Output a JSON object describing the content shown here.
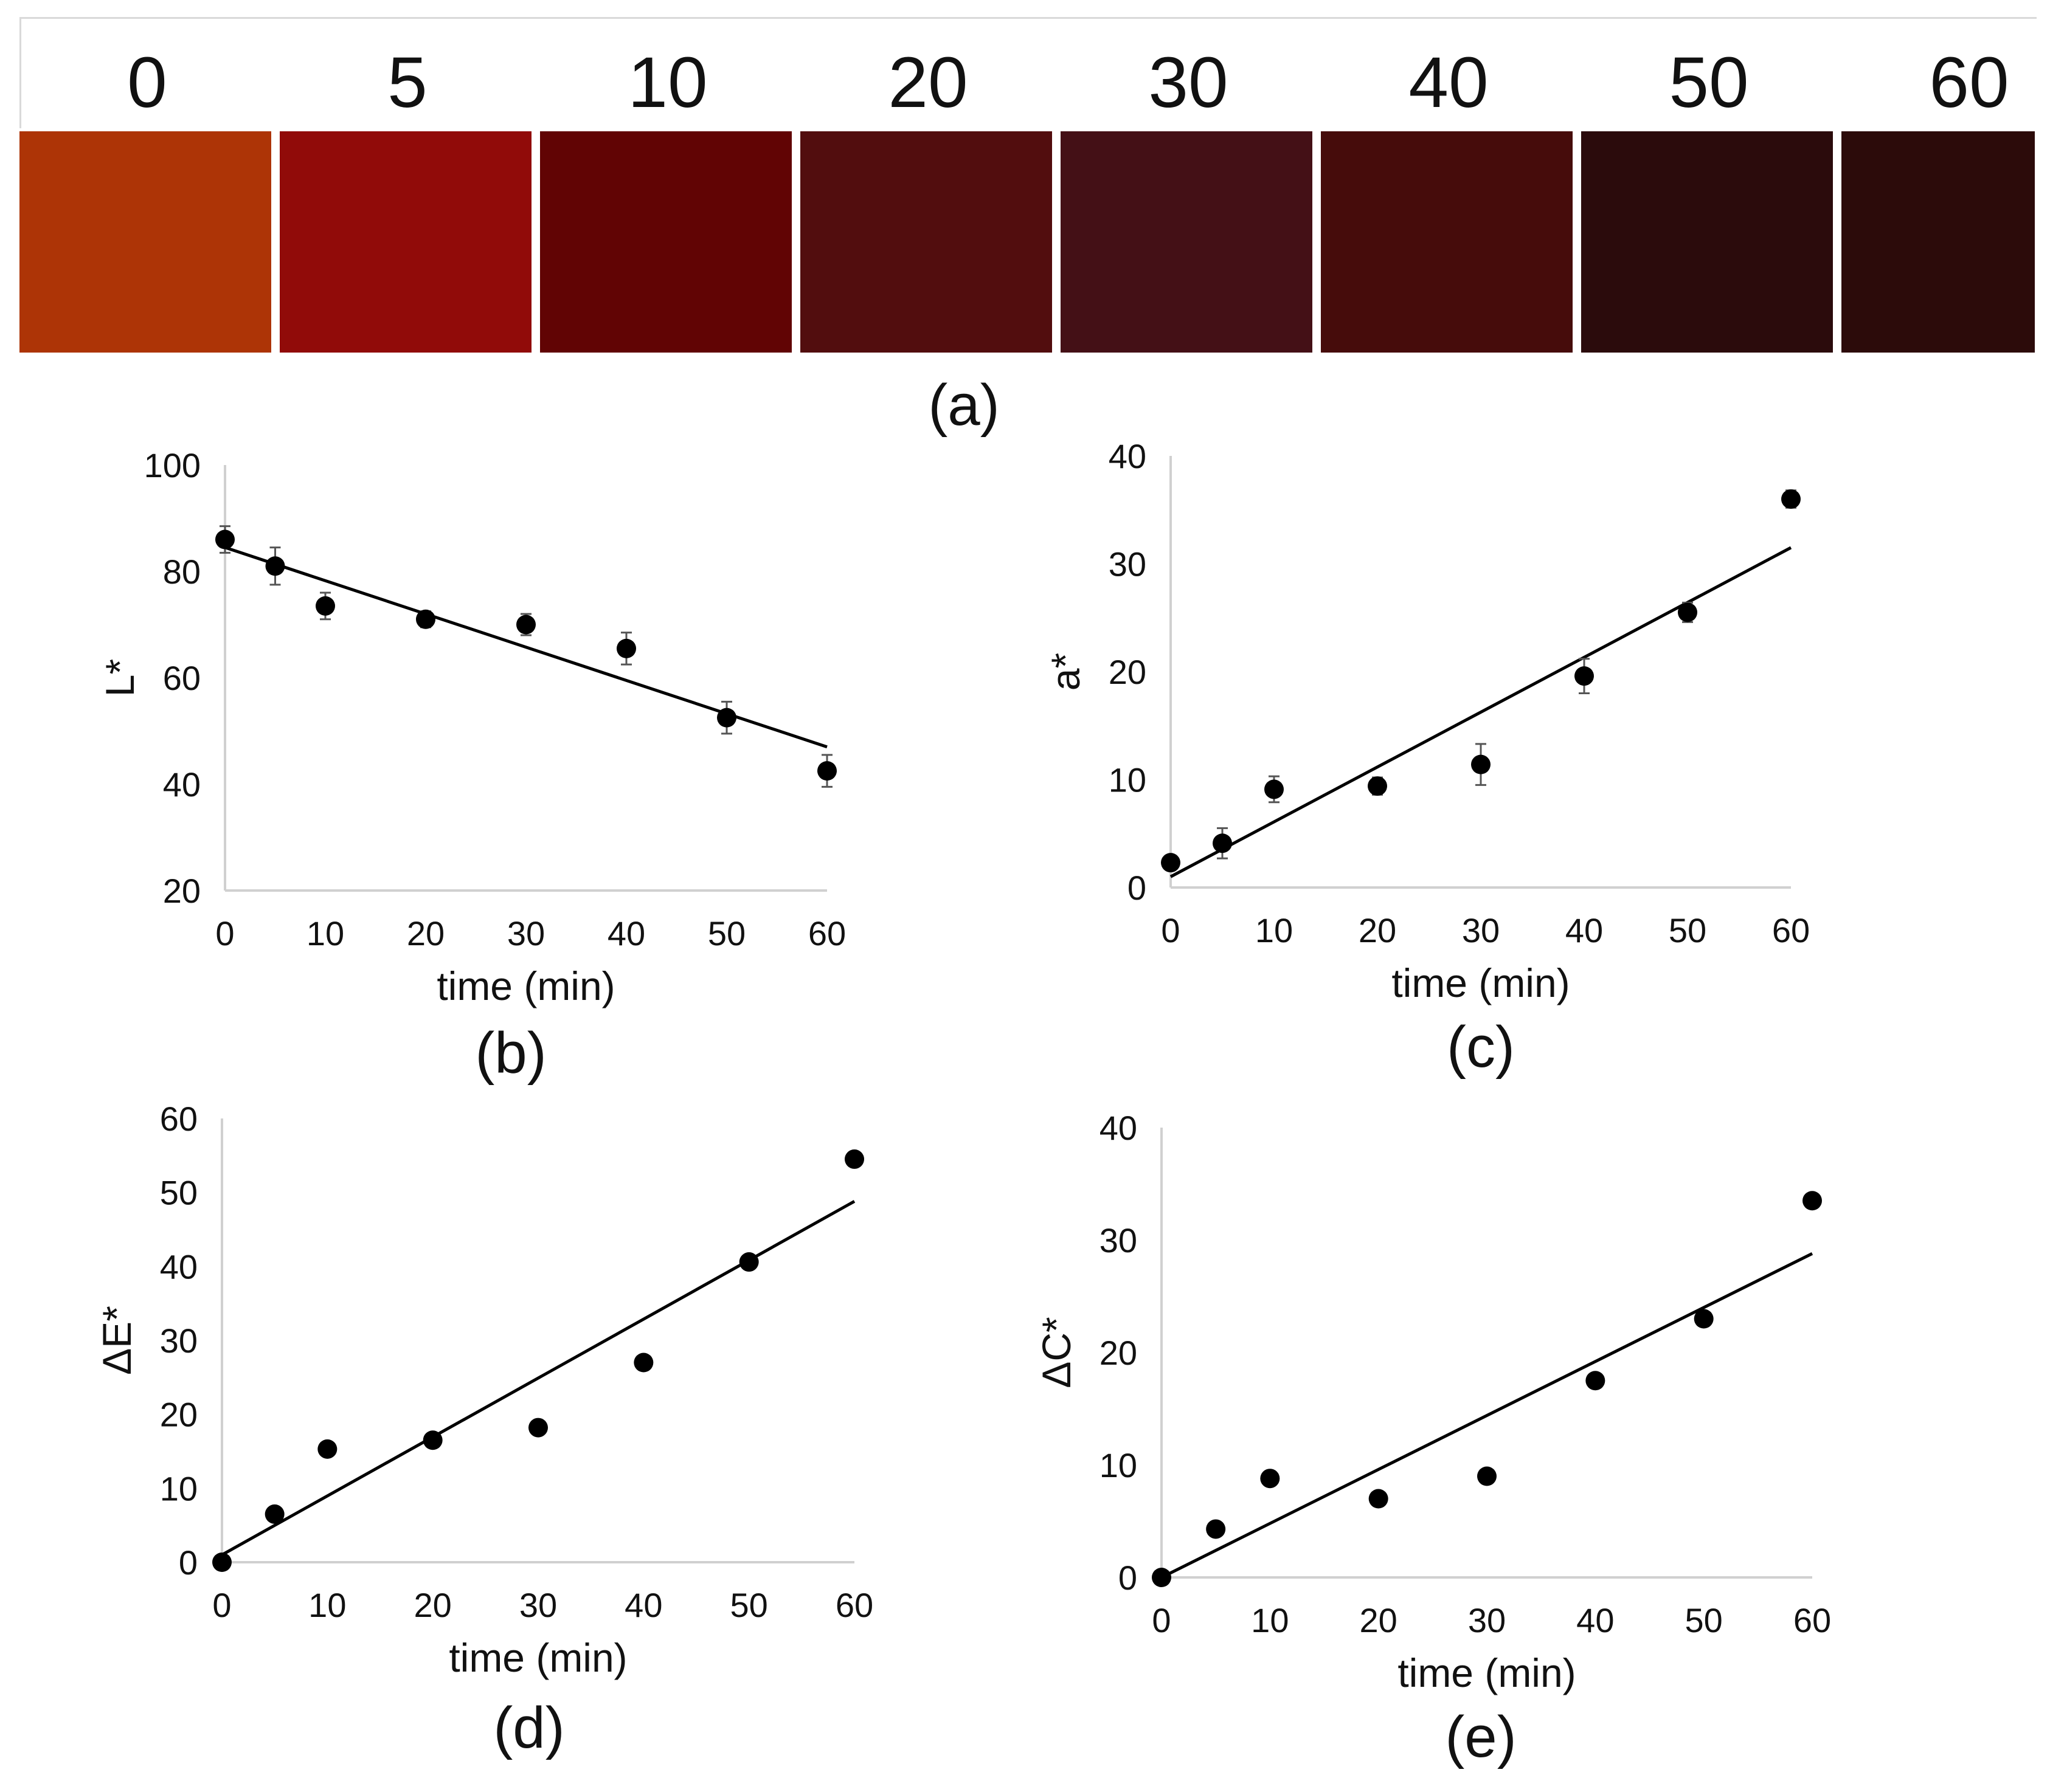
{
  "swatches": {
    "label_unit": "time (min)",
    "items": [
      {
        "label": "0",
        "color": "#ad3406"
      },
      {
        "label": "5",
        "color": "#910b09"
      },
      {
        "label": "10",
        "color": "#610404"
      },
      {
        "label": "20",
        "color": "#520d0e"
      },
      {
        "label": "30",
        "color": "#441016"
      },
      {
        "label": "40",
        "color": "#460c0b"
      },
      {
        "label": "50",
        "color": "#2b0b0c"
      },
      {
        "label": "60",
        "color": "#2c0b0a"
      }
    ],
    "caption": "(a)"
  },
  "chart_data": [
    {
      "id": "b",
      "type": "scatter",
      "caption": "(b)",
      "xlabel": "time (min)",
      "ylabel": "L*",
      "xlim": [
        0,
        60
      ],
      "ylim": [
        20,
        100
      ],
      "xticks": [
        0,
        10,
        20,
        30,
        40,
        50,
        60
      ],
      "yticks": [
        20,
        40,
        60,
        80,
        100
      ],
      "x": [
        0,
        5,
        10,
        20,
        30,
        40,
        50,
        60
      ],
      "y": [
        86,
        81,
        73.5,
        71,
        70,
        65.5,
        52.5,
        42.5
      ],
      "yerr": [
        2.5,
        3.5,
        2.5,
        1.5,
        2,
        3,
        3,
        3
      ],
      "trendline": {
        "x": [
          0,
          60
        ],
        "y": [
          84.5,
          47
        ]
      },
      "grid": false,
      "legend": "none"
    },
    {
      "id": "c",
      "type": "scatter",
      "caption": "(c)",
      "xlabel": "time (min)",
      "ylabel": "a*",
      "xlim": [
        0,
        60
      ],
      "ylim": [
        0,
        40
      ],
      "xticks": [
        0,
        10,
        20,
        30,
        40,
        50,
        60
      ],
      "yticks": [
        0,
        10,
        20,
        30,
        40
      ],
      "x": [
        0,
        5,
        10,
        20,
        30,
        40,
        50,
        60
      ],
      "y": [
        2.3,
        4.1,
        9.1,
        9.4,
        11.4,
        19.6,
        25.5,
        36
      ],
      "yerr": [
        0.3,
        1.4,
        1.2,
        0.8,
        1.9,
        1.6,
        0.9,
        0.8
      ],
      "trendline": {
        "x": [
          0,
          60
        ],
        "y": [
          1,
          31.5
        ]
      },
      "grid": false,
      "legend": "none"
    },
    {
      "id": "d",
      "type": "scatter",
      "caption": "(d)",
      "xlabel": "time (min)",
      "ylabel": "ΔE*",
      "xlim": [
        0,
        60
      ],
      "ylim": [
        0,
        60
      ],
      "xticks": [
        0,
        10,
        20,
        30,
        40,
        50,
        60
      ],
      "yticks": [
        0,
        10,
        20,
        30,
        40,
        50,
        60
      ],
      "x": [
        0,
        5,
        10,
        20,
        30,
        40,
        50,
        60
      ],
      "y": [
        0,
        6.5,
        15.3,
        16.5,
        18.2,
        27,
        40.6,
        54.5
      ],
      "trendline": {
        "x": [
          0,
          60
        ],
        "y": [
          1,
          48.8
        ]
      },
      "grid": false,
      "legend": "none"
    },
    {
      "id": "e",
      "type": "scatter",
      "caption": "(e)",
      "xlabel": "time (min)",
      "ylabel": "ΔC*",
      "xlim": [
        0,
        60
      ],
      "ylim": [
        0,
        40
      ],
      "xticks": [
        0,
        10,
        20,
        30,
        40,
        50,
        60
      ],
      "yticks": [
        0,
        10,
        20,
        30,
        40
      ],
      "x": [
        0,
        5,
        10,
        20,
        30,
        40,
        50,
        60
      ],
      "y": [
        0,
        4.3,
        8.8,
        7,
        9,
        17.5,
        23,
        33.5
      ],
      "trendline": {
        "x": [
          0,
          60
        ],
        "y": [
          0,
          28.8
        ]
      },
      "grid": false,
      "legend": "none"
    }
  ]
}
